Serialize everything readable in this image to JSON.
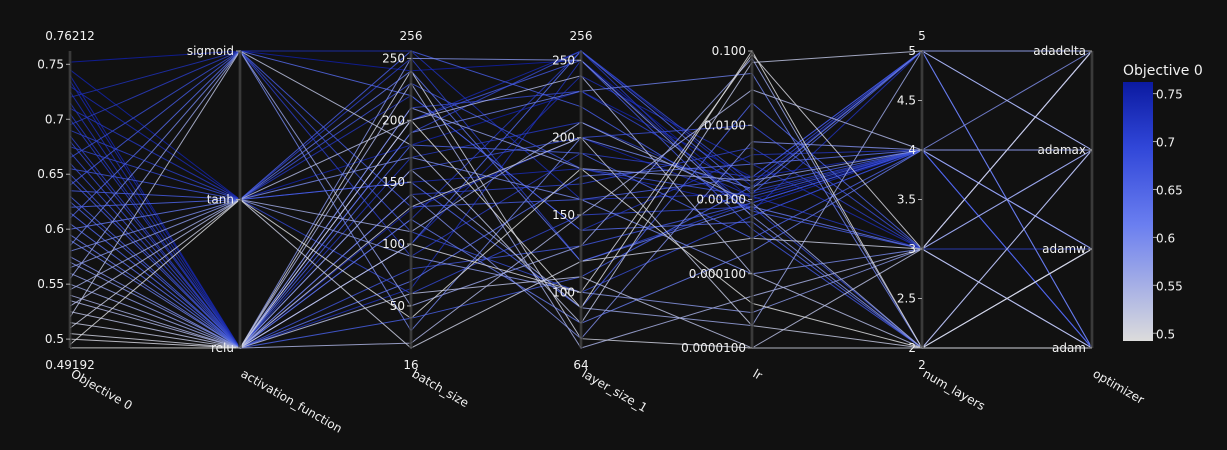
{
  "chart_data": {
    "type": "parallel_coordinates",
    "color_scale": {
      "title": "Objective 0",
      "min": 0.49192,
      "max": 0.76212,
      "low_color": "#dcdcdc",
      "mid_color": "#4f66e8",
      "high_color": "#0b1aa0",
      "ticks": [
        "0.75",
        "0.7",
        "0.65",
        "0.6",
        "0.55",
        "0.5"
      ]
    },
    "background": "#111111",
    "axes": [
      {
        "name": "Objective 0",
        "kind": "numeric",
        "range": [
          0.49192,
          0.76212
        ],
        "top_label": "0.76212",
        "bottom_label": "0.49192",
        "ticks": [
          {
            "value": 0.5,
            "label": "0.5"
          },
          {
            "value": 0.55,
            "label": "0.55"
          },
          {
            "value": 0.6,
            "label": "0.6"
          },
          {
            "value": 0.65,
            "label": "0.65"
          },
          {
            "value": 0.7,
            "label": "0.7"
          },
          {
            "value": 0.75,
            "label": "0.75"
          }
        ]
      },
      {
        "name": "activation_function",
        "kind": "categorical",
        "categories": [
          "relu",
          "tanh",
          "sigmoid"
        ]
      },
      {
        "name": "batch_size",
        "kind": "numeric",
        "range": [
          16,
          256
        ],
        "top_label": "256",
        "bottom_label": "16",
        "ticks": [
          {
            "value": 50,
            "label": "50"
          },
          {
            "value": 100,
            "label": "100"
          },
          {
            "value": 150,
            "label": "150"
          },
          {
            "value": 200,
            "label": "200"
          },
          {
            "value": 250,
            "label": "250"
          }
        ]
      },
      {
        "name": "layer_size_1",
        "kind": "numeric",
        "range": [
          64,
          256
        ],
        "top_label": "256",
        "bottom_label": "64",
        "ticks": [
          {
            "value": 100,
            "label": "100"
          },
          {
            "value": 150,
            "label": "150"
          },
          {
            "value": 200,
            "label": "200"
          },
          {
            "value": 250,
            "label": "250"
          }
        ]
      },
      {
        "name": "lr",
        "kind": "log",
        "range": [
          1e-05,
          0.1
        ],
        "ticks": [
          {
            "value": 1e-05,
            "label": "0.0000100"
          },
          {
            "value": 0.0001,
            "label": "0.000100"
          },
          {
            "value": 0.001,
            "label": "0.00100"
          },
          {
            "value": 0.01,
            "label": "0.0100"
          },
          {
            "value": 0.1,
            "label": "0.100"
          }
        ]
      },
      {
        "name": "num_layers",
        "kind": "numeric",
        "range": [
          2,
          5
        ],
        "top_label": "5",
        "bottom_label": "2",
        "ticks": [
          {
            "value": 2,
            "label": "2"
          },
          {
            "value": 2.5,
            "label": "2.5"
          },
          {
            "value": 3,
            "label": "3"
          },
          {
            "value": 3.5,
            "label": "3.5"
          },
          {
            "value": 4,
            "label": "4"
          },
          {
            "value": 4.5,
            "label": "4.5"
          },
          {
            "value": 5,
            "label": "5"
          }
        ]
      },
      {
        "name": "optimizer",
        "kind": "categorical",
        "categories": [
          "adam",
          "adamw",
          "adamax",
          "adadelta"
        ]
      }
    ],
    "samples": [
      [
        0.752,
        "sigmoid",
        240,
        250,
        0.001,
        4,
        "adamax"
      ],
      [
        0.745,
        "tanh",
        180,
        230,
        0.002,
        4,
        "adamax"
      ],
      [
        0.74,
        "relu",
        128,
        200,
        0.0009,
        4,
        "adam"
      ],
      [
        0.735,
        "relu",
        200,
        256,
        0.0015,
        5,
        "adadelta"
      ],
      [
        0.73,
        "tanh",
        150,
        180,
        0.0008,
        4,
        "adamw"
      ],
      [
        0.725,
        "relu",
        100,
        240,
        0.003,
        3,
        "adamax"
      ],
      [
        0.72,
        "sigmoid",
        256,
        160,
        0.0012,
        4,
        "adam"
      ],
      [
        0.715,
        "relu",
        64,
        250,
        0.0007,
        5,
        "adamax"
      ],
      [
        0.71,
        "tanh",
        220,
        140,
        0.004,
        4,
        "adamw"
      ],
      [
        0.705,
        "relu",
        170,
        210,
        0.0011,
        3,
        "adadelta"
      ],
      [
        0.7,
        "relu",
        120,
        256,
        0.0006,
        4,
        "adamax"
      ],
      [
        0.695,
        "sigmoid",
        90,
        190,
        0.002,
        5,
        "adam"
      ],
      [
        0.69,
        "tanh",
        250,
        120,
        0.0009,
        4,
        "adamax"
      ],
      [
        0.685,
        "relu",
        140,
        170,
        0.005,
        3,
        "adamw"
      ],
      [
        0.68,
        "relu",
        210,
        230,
        0.0013,
        4,
        "adam"
      ],
      [
        0.675,
        "tanh",
        60,
        150,
        0.0008,
        2,
        "adamax"
      ],
      [
        0.67,
        "relu",
        190,
        256,
        0.0017,
        5,
        "adadelta"
      ],
      [
        0.665,
        "sigmoid",
        110,
        100,
        0.0006,
        4,
        "adamw"
      ],
      [
        0.66,
        "relu",
        160,
        200,
        0.01,
        3,
        "adam"
      ],
      [
        0.655,
        "tanh",
        230,
        180,
        0.0011,
        4,
        "adamax"
      ],
      [
        0.65,
        "relu",
        80,
        130,
        0.0009,
        4,
        "adamw"
      ],
      [
        0.645,
        "relu",
        200,
        250,
        0.0004,
        2,
        "adamax"
      ],
      [
        0.64,
        "sigmoid",
        130,
        160,
        0.002,
        5,
        "adam"
      ],
      [
        0.635,
        "tanh",
        256,
        220,
        0.0007,
        3,
        "adadelta"
      ],
      [
        0.63,
        "relu",
        40,
        110,
        0.0015,
        4,
        "adamax"
      ],
      [
        0.625,
        "relu",
        180,
        190,
        0.0003,
        4,
        "adamw"
      ],
      [
        0.62,
        "tanh",
        150,
        90,
        0.02,
        3,
        "adam"
      ],
      [
        0.615,
        "relu",
        100,
        256,
        0.0012,
        5,
        "adamax"
      ],
      [
        0.61,
        "sigmoid",
        220,
        140,
        0.0005,
        2,
        "adamw"
      ],
      [
        0.605,
        "relu",
        70,
        175,
        0.003,
        4,
        "adam"
      ],
      [
        0.6,
        "tanh",
        240,
        120,
        0.0008,
        3,
        "adadelta"
      ],
      [
        0.595,
        "relu",
        120,
        80,
        0.0002,
        4,
        "adamax"
      ],
      [
        0.59,
        "relu",
        190,
        230,
        0.05,
        2,
        "adamw"
      ],
      [
        0.585,
        "sigmoid",
        30,
        200,
        0.0014,
        5,
        "adam"
      ],
      [
        0.58,
        "tanh",
        170,
        160,
        0.0001,
        3,
        "adamax"
      ],
      [
        0.575,
        "relu",
        140,
        70,
        0.006,
        4,
        "adadelta"
      ],
      [
        0.57,
        "relu",
        250,
        250,
        0.0006,
        2,
        "adamw"
      ],
      [
        0.565,
        "tanh",
        90,
        100,
        3e-05,
        3,
        "adam"
      ],
      [
        0.56,
        "relu",
        210,
        180,
        0.0018,
        4,
        "adamax"
      ],
      [
        0.555,
        "sigmoid",
        50,
        130,
        0.08,
        2,
        "adamw"
      ],
      [
        0.55,
        "relu",
        160,
        90,
        2e-05,
        5,
        "adadelta"
      ],
      [
        0.545,
        "tanh",
        110,
        210,
        0.0009,
        2,
        "adam"
      ],
      [
        0.54,
        "relu",
        230,
        64,
        5e-05,
        3,
        "adamax"
      ],
      [
        0.535,
        "relu",
        20,
        150,
        0.03,
        4,
        "adamw"
      ],
      [
        0.53,
        "tanh",
        200,
        240,
        0.0001,
        2,
        "adam"
      ],
      [
        0.525,
        "relu",
        60,
        110,
        1e-05,
        3,
        "adadelta"
      ],
      [
        0.52,
        "sigmoid",
        180,
        80,
        0.07,
        5,
        "adamax"
      ],
      [
        0.515,
        "relu",
        130,
        200,
        2e-05,
        2,
        "adamw"
      ],
      [
        0.51,
        "tanh",
        16,
        120,
        0.0003,
        3,
        "adam"
      ],
      [
        0.505,
        "relu",
        240,
        70,
        1e-05,
        2,
        "adamax"
      ],
      [
        0.5,
        "relu",
        100,
        100,
        0.09,
        3,
        "adadelta"
      ],
      [
        0.495,
        "tanh",
        40,
        180,
        4e-05,
        2,
        "adam"
      ],
      [
        0.492,
        "relu",
        200,
        90,
        0.1,
        2,
        "adamw"
      ]
    ]
  }
}
